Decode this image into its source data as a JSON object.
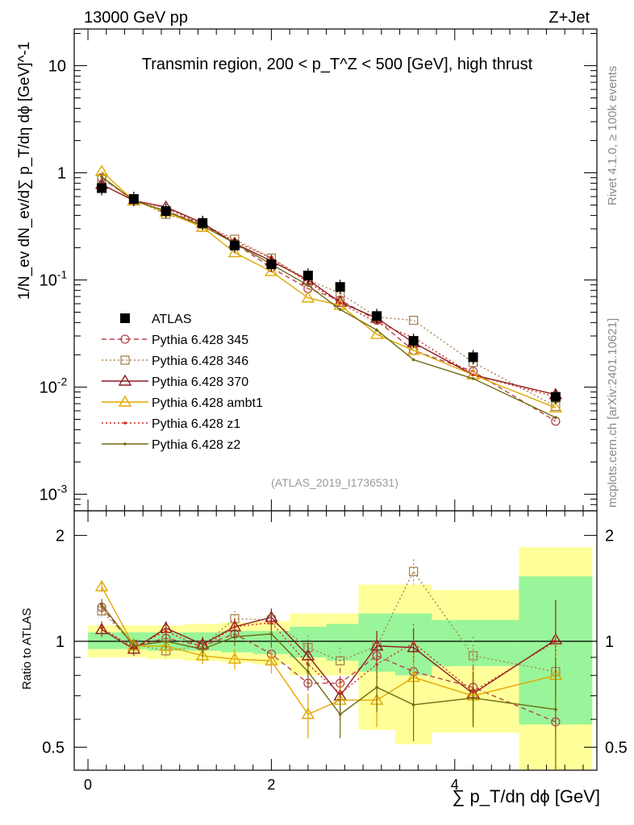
{
  "header": {
    "left": "13000 GeV pp",
    "right": "Z+Jet"
  },
  "side_labels": {
    "rivet": "Rivet 4.1.0, ≥ 100k events",
    "mcplots": "mcplots.cern.ch [arXiv:2401.10621]"
  },
  "chart_data": {
    "type": "line",
    "title": "Transmin region, 200 < p_T^Z < 500 [GeV], high thrust",
    "analysis_id": "(ATLAS_2019_I1736531)",
    "xlabel": "∑ p_T/dη dϕ [GeV]",
    "ylabel_top": "1/N_ev dN_ev/d∑ p_T/dη dϕ [GeV]^-1",
    "ylabel_ratio": "Ratio to ATLAS",
    "xlim": [
      -0.15,
      5.55
    ],
    "ylim_top": [
      0.0007,
      22
    ],
    "ylim_ratio": [
      0.43,
      2.35
    ],
    "top_y_ticks": [
      "10",
      "1",
      "10^-1",
      "10^-2",
      "10^-3"
    ],
    "top_y_tick_values": [
      10,
      1,
      0.1,
      0.01,
      0.001
    ],
    "ratio_y_ticks": [
      "2",
      "1",
      "0.5"
    ],
    "ratio_y_tick_values": [
      2,
      1,
      0.5
    ],
    "x_ticks": [
      "0",
      "2",
      "4"
    ],
    "x_tick_values": [
      0,
      2,
      4
    ],
    "x": [
      0.15,
      0.5,
      0.85,
      1.25,
      1.6,
      2.0,
      2.4,
      2.75,
      3.15,
      3.55,
      4.2,
      5.1
    ],
    "bin_edges": [
      0,
      0.3,
      0.65,
      1.05,
      1.45,
      1.8,
      2.2,
      2.6,
      2.95,
      3.35,
      3.75,
      4.7,
      5.5
    ],
    "ratio_band_inner": [
      [
        0.95,
        1.06
      ],
      [
        0.95,
        1.06
      ],
      [
        0.94,
        1.06
      ],
      [
        0.94,
        1.06
      ],
      [
        0.93,
        1.07
      ],
      [
        0.92,
        1.07
      ],
      [
        0.9,
        1.1
      ],
      [
        0.88,
        1.12
      ],
      [
        0.82,
        1.2
      ],
      [
        0.8,
        1.2
      ],
      [
        0.85,
        1.15
      ],
      [
        0.58,
        1.53
      ]
    ],
    "ratio_band_outer": [
      [
        0.9,
        1.11
      ],
      [
        0.9,
        1.11
      ],
      [
        0.89,
        1.11
      ],
      [
        0.88,
        1.12
      ],
      [
        0.87,
        1.13
      ],
      [
        0.86,
        1.14
      ],
      [
        0.8,
        1.2
      ],
      [
        0.8,
        1.2
      ],
      [
        0.56,
        1.45
      ],
      [
        0.51,
        1.45
      ],
      [
        0.55,
        1.4
      ],
      [
        0.3,
        1.85
      ]
    ],
    "series": [
      {
        "name": "ATLAS",
        "color": "#000000",
        "style": "data",
        "values": [
          0.72,
          0.57,
          0.44,
          0.34,
          0.21,
          0.14,
          0.11,
          0.086,
          0.046,
          0.027,
          0.019,
          0.0081
        ]
      },
      {
        "name": "Pythia 6.428 345",
        "color": "#b5464c",
        "style": "dashed",
        "marker": "circle",
        "values": [
          0.9,
          0.55,
          0.44,
          0.33,
          0.22,
          0.13,
          0.083,
          0.065,
          0.042,
          0.022,
          0.014,
          0.0048
        ],
        "ratio": [
          1.25,
          0.97,
          1.02,
          0.97,
          1.05,
          0.92,
          0.76,
          0.76,
          0.91,
          0.82,
          0.74,
          0.59
        ],
        "ratio_err": [
          0.05,
          0.04,
          0.05,
          0.05,
          0.06,
          0.07,
          0.07,
          0.08,
          0.1,
          0.13,
          0.12,
          0.25
        ]
      },
      {
        "name": "Pythia 6.428 346",
        "color": "#a8844e",
        "style": "dotted",
        "marker": "square",
        "values": [
          0.88,
          0.56,
          0.41,
          0.33,
          0.24,
          0.16,
          0.1,
          0.075,
          0.045,
          0.042,
          0.017,
          0.0066
        ],
        "ratio": [
          1.22,
          0.98,
          0.94,
          0.97,
          1.16,
          1.15,
          0.96,
          0.88,
          0.97,
          1.58,
          0.91,
          0.82
        ],
        "ratio_err": [
          0.05,
          0.04,
          0.05,
          0.05,
          0.06,
          0.07,
          0.08,
          0.08,
          0.1,
          0.13,
          0.12,
          0.25
        ]
      },
      {
        "name": "Pythia 6.428 370",
        "color": "#8e1d24",
        "style": "solid",
        "marker": "triangle",
        "values": [
          0.78,
          0.55,
          0.48,
          0.34,
          0.22,
          0.15,
          0.1,
          0.062,
          0.044,
          0.026,
          0.013,
          0.0085
        ],
        "ratio": [
          1.08,
          0.95,
          1.09,
          0.98,
          1.1,
          1.17,
          0.91,
          0.7,
          0.97,
          0.96,
          0.71,
          1.01
        ],
        "ratio_err": [
          0.05,
          0.04,
          0.05,
          0.05,
          0.06,
          0.07,
          0.08,
          0.08,
          0.1,
          0.13,
          0.12,
          0.3
        ]
      },
      {
        "name": "Pythia 6.428 ambt1",
        "color": "#e0a800",
        "style": "solid",
        "marker": "triangle",
        "values": [
          1.03,
          0.55,
          0.43,
          0.31,
          0.18,
          0.12,
          0.068,
          0.058,
          0.031,
          0.022,
          0.013,
          0.0064
        ],
        "ratio": [
          1.43,
          0.97,
          0.97,
          0.91,
          0.89,
          0.88,
          0.62,
          0.68,
          0.68,
          0.79,
          0.7,
          0.8
        ],
        "ratio_err": [
          0.05,
          0.04,
          0.05,
          0.05,
          0.06,
          0.07,
          0.09,
          0.09,
          0.11,
          0.14,
          0.13,
          0.25
        ]
      },
      {
        "name": "Pythia 6.428 z1",
        "color": "#cc2c1a",
        "style": "dotted",
        "marker": "dot",
        "values": [
          0.78,
          0.55,
          0.47,
          0.33,
          0.23,
          0.16,
          0.095,
          0.061,
          0.04,
          0.029,
          0.013,
          0.0081
        ],
        "ratio": [
          1.09,
          0.96,
          1.07,
          0.96,
          1.1,
          1.13,
          0.86,
          0.71,
          0.86,
          0.99,
          0.72,
          1.0
        ],
        "ratio_err": [
          0.05,
          0.04,
          0.05,
          0.05,
          0.06,
          0.07,
          0.08,
          0.08,
          0.1,
          0.13,
          0.12,
          0.3
        ]
      },
      {
        "name": "Pythia 6.428 z2",
        "color": "#6e6b12",
        "style": "solid",
        "marker": "dot",
        "values": [
          0.92,
          0.55,
          0.44,
          0.32,
          0.22,
          0.14,
          0.089,
          0.053,
          0.034,
          0.018,
          0.012,
          0.0052
        ],
        "ratio": [
          1.27,
          0.97,
          1.0,
          0.95,
          1.03,
          1.05,
          0.82,
          0.62,
          0.74,
          0.66,
          0.69,
          0.64
        ],
        "ratio_err": [
          0.05,
          0.04,
          0.05,
          0.05,
          0.06,
          0.07,
          0.08,
          0.09,
          0.11,
          0.14,
          0.12,
          0.25
        ]
      }
    ]
  }
}
